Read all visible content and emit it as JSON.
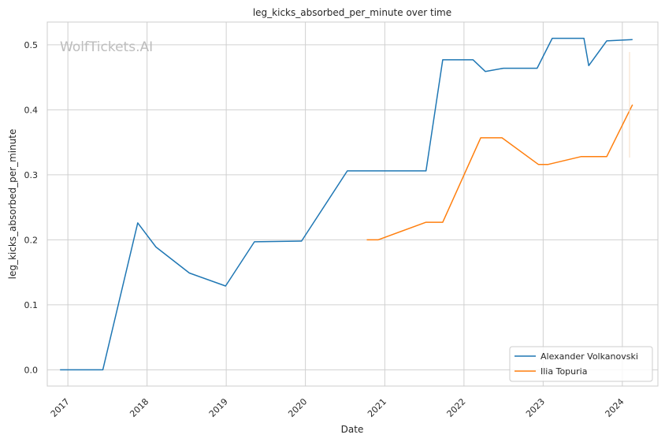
{
  "chart_data": {
    "type": "line",
    "title": "leg_kicks_absorbed_per_minute over time",
    "xlabel": "Date",
    "ylabel": "leg_kicks_absorbed_per_minute",
    "watermark": "WolfTickets.AI",
    "x_ticks": [
      "2017",
      "2018",
      "2019",
      "2020",
      "2021",
      "2022",
      "2023",
      "2024"
    ],
    "y_ticks": [
      "0.0",
      "0.1",
      "0.2",
      "0.3",
      "0.4",
      "0.5"
    ],
    "xlim": [
      "2016-09-28",
      "2024-06-13"
    ],
    "ylim": [
      -0.025,
      0.535
    ],
    "grid": true,
    "legend_position": "bottom-right",
    "series": [
      {
        "name": "Alexander Volkanovski",
        "color": "#1f77b4",
        "points": [
          [
            "2016-11-26",
            0.0
          ],
          [
            "2017-06-11",
            0.0
          ],
          [
            "2017-11-19",
            0.226
          ],
          [
            "2018-02-11",
            0.189
          ],
          [
            "2018-07-15",
            0.149
          ],
          [
            "2018-12-29",
            0.129
          ],
          [
            "2019-05-11",
            0.197
          ],
          [
            "2019-12-14",
            0.198
          ],
          [
            "2020-07-12",
            0.306
          ],
          [
            "2021-07-10",
            0.306
          ],
          [
            "2021-09-25",
            0.477
          ],
          [
            "2022-02-12",
            0.477
          ],
          [
            "2022-04-09",
            0.459
          ],
          [
            "2022-07-02",
            0.464
          ],
          [
            "2022-12-04",
            0.464
          ],
          [
            "2023-02-12",
            0.51
          ],
          [
            "2023-07-08",
            0.51
          ],
          [
            "2023-07-30",
            0.468
          ],
          [
            "2023-10-21",
            0.506
          ],
          [
            "2024-02-17",
            0.508
          ]
        ]
      },
      {
        "name": "Ilia Topuria",
        "color": "#ff7f0e",
        "points": [
          [
            "2020-10-10",
            0.2
          ],
          [
            "2020-12-01",
            0.2
          ],
          [
            "2021-07-10",
            0.227
          ],
          [
            "2021-09-25",
            0.227
          ],
          [
            "2022-03-19",
            0.357
          ],
          [
            "2022-06-25",
            0.357
          ],
          [
            "2022-12-10",
            0.316
          ],
          [
            "2023-01-24",
            0.316
          ],
          [
            "2023-06-24",
            0.328
          ],
          [
            "2023-10-21",
            0.328
          ],
          [
            "2024-02-17",
            0.408
          ]
        ]
      }
    ]
  }
}
